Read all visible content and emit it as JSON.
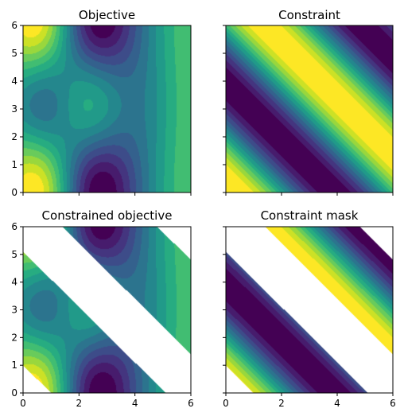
{
  "chart_data": [
    {
      "type": "heatmap",
      "title": "Objective",
      "xlim": [
        0,
        6
      ],
      "ylim": [
        0,
        6
      ],
      "xticks": [
        "0",
        "2",
        "4",
        "6"
      ],
      "yticks": [
        "0",
        "1",
        "2",
        "3",
        "4",
        "5",
        "6"
      ],
      "show_xticklabels": false,
      "show_yticklabels": true,
      "field": "objective",
      "masked": false,
      "colormap": "viridis",
      "filled_contours": true
    },
    {
      "type": "heatmap",
      "title": "Constraint",
      "xlim": [
        0,
        6
      ],
      "ylim": [
        0,
        6
      ],
      "xticks": [
        "0",
        "2",
        "4",
        "6"
      ],
      "yticks": [
        "0",
        "1",
        "2",
        "3",
        "4",
        "5",
        "6"
      ],
      "show_xticklabels": false,
      "show_yticklabels": false,
      "field": "constraint",
      "masked": false,
      "colormap": "viridis",
      "filled_contours": true
    },
    {
      "type": "heatmap",
      "title": "Constrained objective",
      "xlim": [
        0,
        6
      ],
      "ylim": [
        0,
        6
      ],
      "xticks": [
        "0",
        "2",
        "4",
        "6"
      ],
      "yticks": [
        "0",
        "1",
        "2",
        "3",
        "4",
        "5",
        "6"
      ],
      "show_xticklabels": true,
      "show_yticklabels": true,
      "field": "objective",
      "masked": true,
      "colormap": "viridis",
      "filled_contours": true
    },
    {
      "type": "heatmap",
      "title": "Constraint mask",
      "xlim": [
        0,
        6
      ],
      "ylim": [
        0,
        6
      ],
      "xticks": [
        "0",
        "2",
        "4",
        "6"
      ],
      "yticks": [
        "0",
        "1",
        "2",
        "3",
        "4",
        "5",
        "6"
      ],
      "show_xticklabels": true,
      "show_yticklabels": false,
      "field": "constraint",
      "masked": true,
      "colormap": "viridis",
      "filled_contours": true
    }
  ]
}
